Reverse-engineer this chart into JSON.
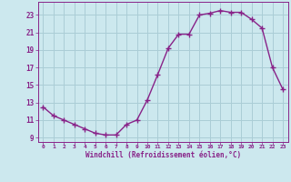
{
  "x": [
    0,
    1,
    2,
    3,
    4,
    5,
    6,
    7,
    8,
    9,
    10,
    11,
    12,
    13,
    14,
    15,
    16,
    17,
    18,
    19,
    20,
    21,
    22,
    23
  ],
  "y": [
    12.5,
    11.5,
    11.0,
    10.5,
    10.0,
    9.5,
    9.3,
    9.3,
    10.5,
    11.0,
    13.3,
    16.2,
    19.2,
    20.8,
    20.8,
    23.0,
    23.2,
    23.5,
    23.3,
    23.3,
    22.5,
    21.5,
    17.0,
    14.5
  ],
  "line_color": "#882288",
  "marker": "+",
  "marker_size": 4,
  "bg_color": "#cce8ee",
  "grid_color": "#aacdd6",
  "xlabel": "Windchill (Refroidissement éolien,°C)",
  "xlabel_color": "#882288",
  "tick_color": "#882288",
  "ylim": [
    8.5,
    24.5
  ],
  "xlim": [
    -0.5,
    23.5
  ],
  "yticks": [
    9,
    11,
    13,
    15,
    17,
    19,
    21,
    23
  ],
  "xticks": [
    0,
    1,
    2,
    3,
    4,
    5,
    6,
    7,
    8,
    9,
    10,
    11,
    12,
    13,
    14,
    15,
    16,
    17,
    18,
    19,
    20,
    21,
    22,
    23
  ],
  "line_width": 1.0,
  "marker_color": "#882288"
}
